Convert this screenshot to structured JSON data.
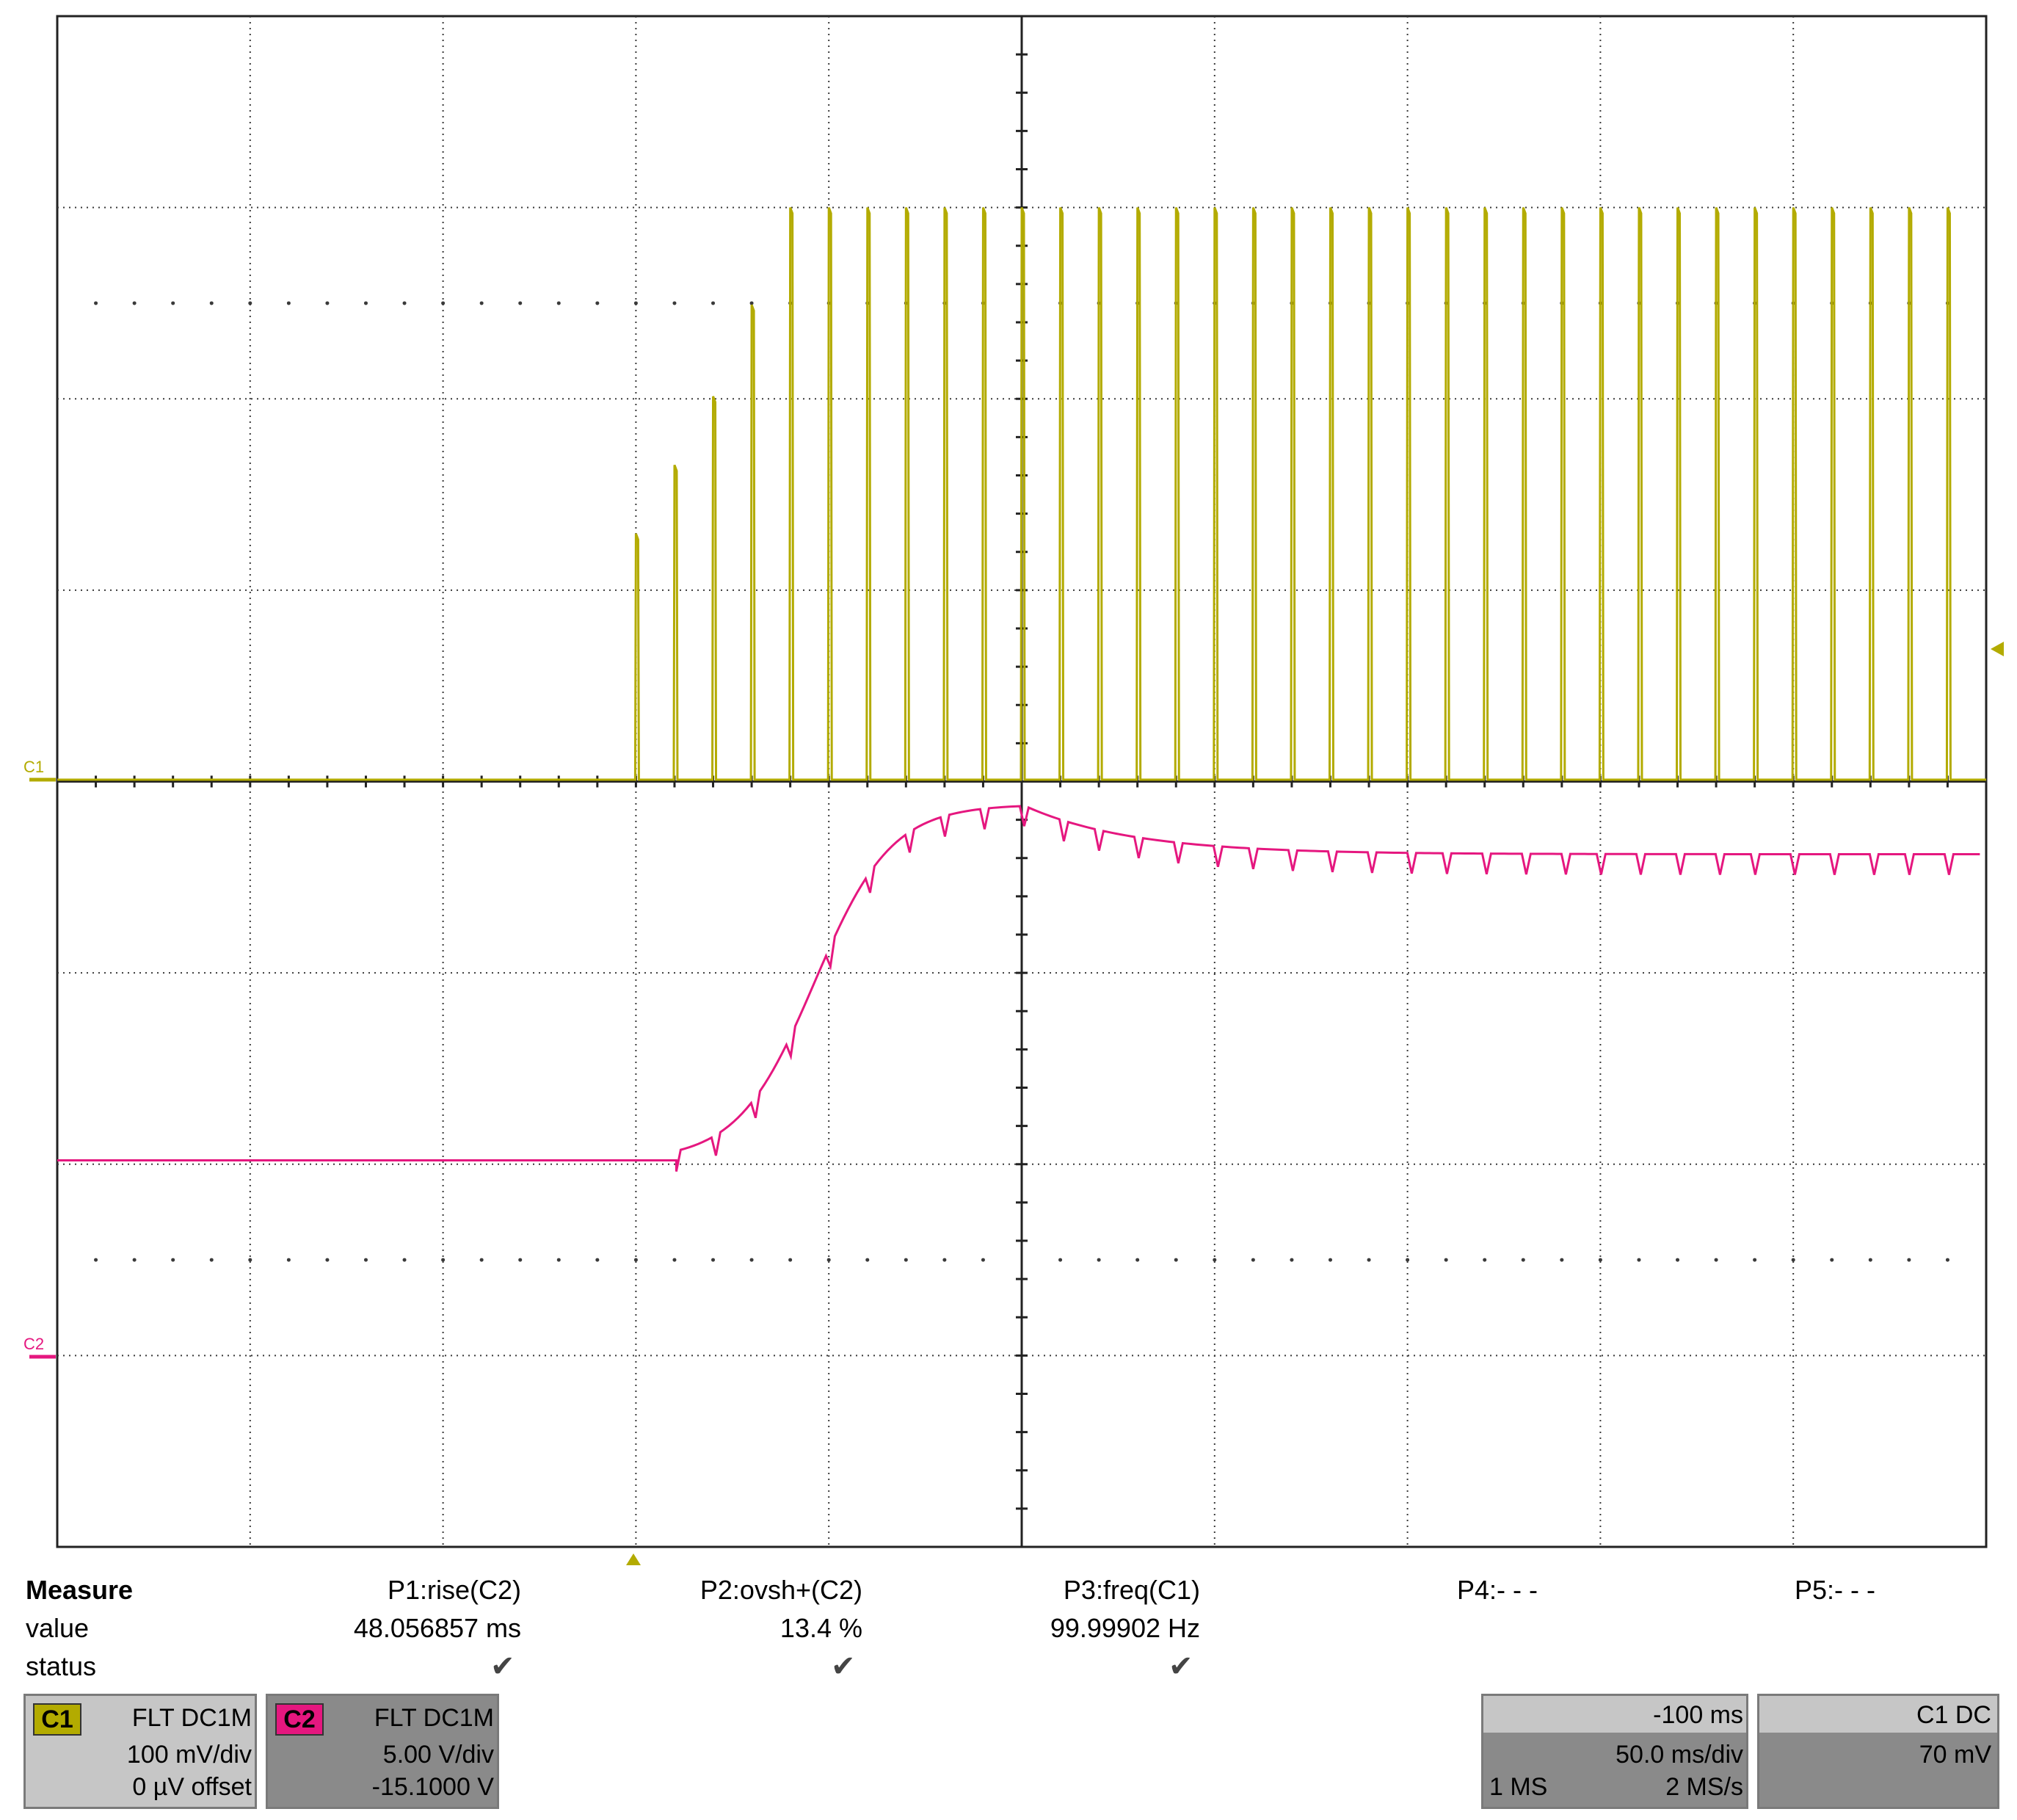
{
  "colors": {
    "c1": "#b3ab00",
    "c2": "#e5177f",
    "grid": "#3a3a3a",
    "panel_light": "#c6c6c6",
    "panel_dark": "#8a8a8a"
  },
  "channels": {
    "c1_marker": "C1",
    "c2_marker": "C2"
  },
  "measure": {
    "header": "Measure",
    "row_value": "value",
    "row_status": "status",
    "params": [
      {
        "name": "P1:rise(C2)",
        "value": "48.056857 ms",
        "status": "check"
      },
      {
        "name": "P2:ovsh+(C2)",
        "value": "13.4 %",
        "status": "check"
      },
      {
        "name": "P3:freq(C1)",
        "value": "99.99902 Hz",
        "status": "check"
      },
      {
        "name": "P4:- - -",
        "value": "",
        "status": ""
      },
      {
        "name": "P5:- - -",
        "value": "",
        "status": ""
      }
    ]
  },
  "c1_box": {
    "label": "C1",
    "coupling": "FLT  DC1M",
    "scale": "100 mV/div",
    "offset": "0 µV offset"
  },
  "c2_box": {
    "label": "C2",
    "coupling": "FLT  DC1M",
    "scale": "5.00 V/div",
    "offset": "-15.1000 V"
  },
  "timebase_box": {
    "delay": "-100 ms",
    "scale": "50.0 ms/div",
    "memory": "1 MS",
    "rate": "2 MS/s"
  },
  "trigger_box": {
    "source": "C1  DC",
    "level": "70 mV"
  }
}
